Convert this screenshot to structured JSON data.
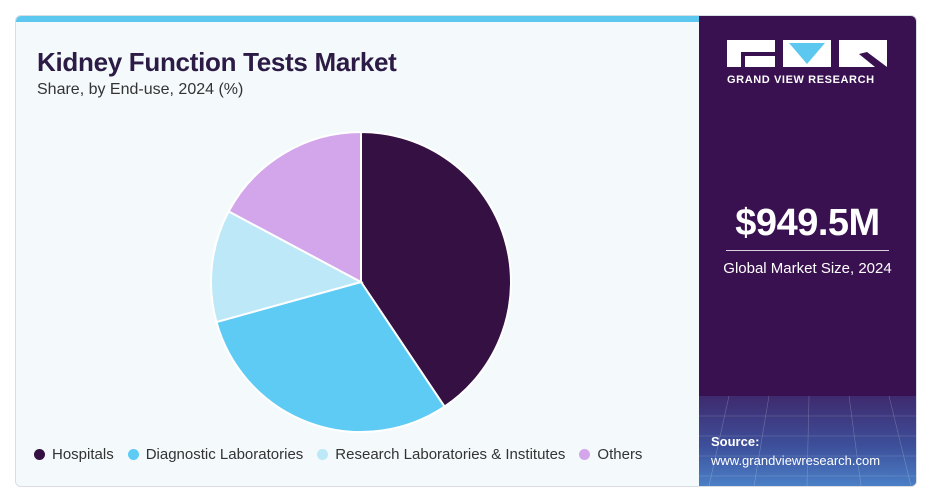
{
  "title": "Kidney Function Tests Market",
  "subtitle": "Share, by End-use, 2024 (%)",
  "chart_data": {
    "type": "pie",
    "title": "Kidney Function Tests Market",
    "subtitle": "Share, by End-use, 2024 (%)",
    "categories": [
      "Hospitals",
      "Diagnostic Laboratories",
      "Research Laboratories & Institutes",
      "Others"
    ],
    "values": [
      40.6,
      30.1,
      12.1,
      17.2
    ],
    "colors": [
      "#351043",
      "#5ecbf5",
      "#bde8f8",
      "#d3a6ec"
    ],
    "start": "12 o'clock",
    "direction": "clockwise",
    "legend_position": "bottom"
  },
  "brand": {
    "name": "GRAND VIEW RESEARCH"
  },
  "market": {
    "value": "$949.5M",
    "label": "Global Market Size, 2024"
  },
  "source": {
    "label": "Source:",
    "url": "www.grandviewresearch.com"
  },
  "colors": {
    "accent": "#5cc8f0",
    "panel": "#3a1150",
    "title": "#2c1b45"
  }
}
